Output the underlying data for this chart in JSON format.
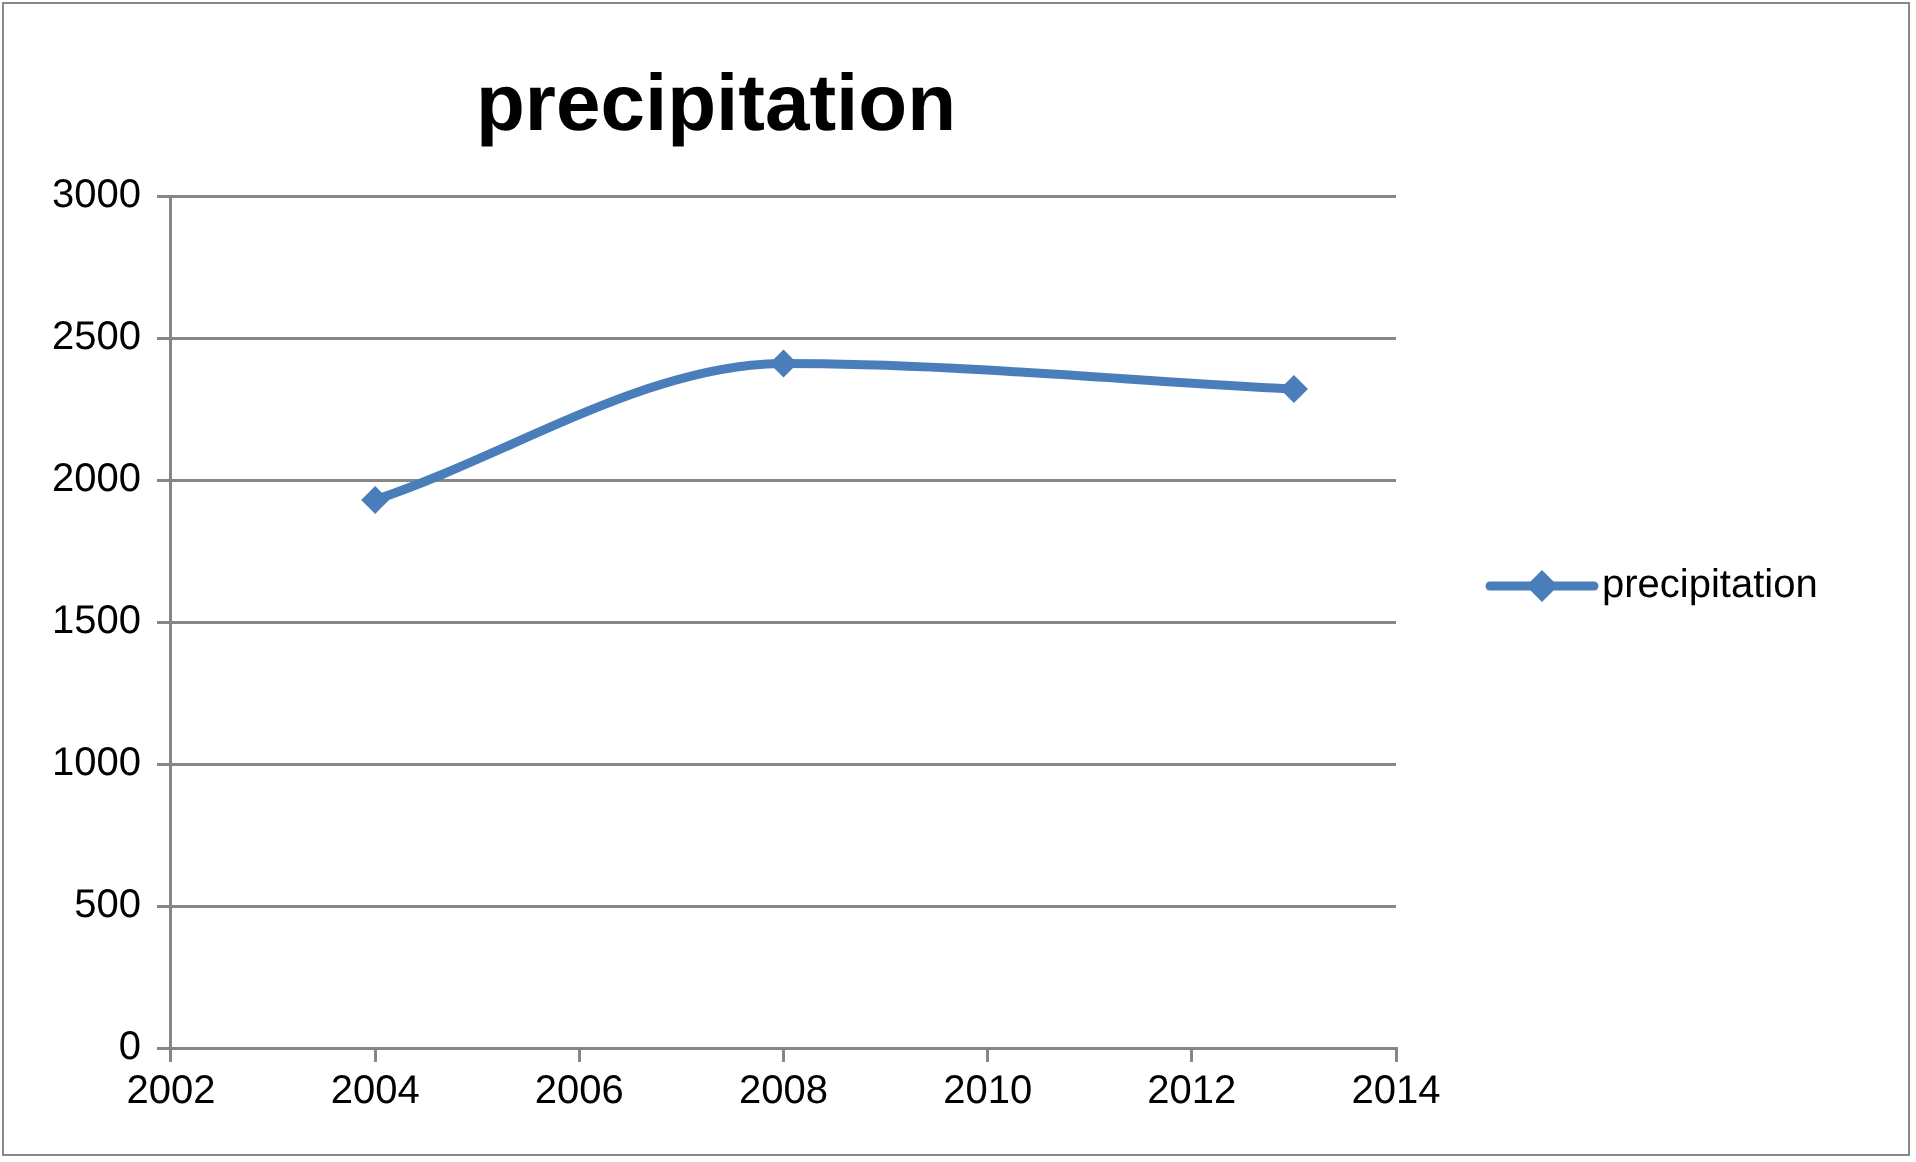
{
  "chart_data": {
    "type": "line",
    "title": "precipitation",
    "x": [
      2004,
      2008,
      2013
    ],
    "series": [
      {
        "name": "precipitation",
        "color": "#4a7ebb",
        "values": [
          1930,
          2410,
          2320
        ]
      }
    ],
    "xlim": [
      2002,
      2014
    ],
    "xticks": [
      2002,
      2004,
      2006,
      2008,
      2010,
      2012,
      2014
    ],
    "ylim": [
      0,
      3000
    ],
    "yticks": [
      0,
      500,
      1000,
      1500,
      2000,
      2500,
      3000
    ],
    "grid": "y",
    "legend": "right",
    "marker": "diamond",
    "line_style": "solid"
  }
}
